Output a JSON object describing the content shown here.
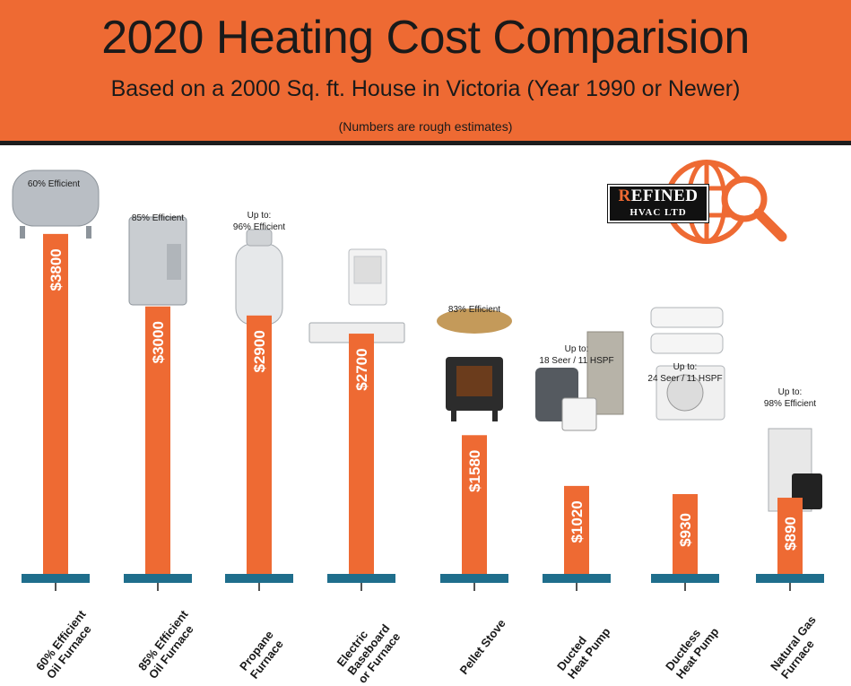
{
  "header": {
    "title": "2020 Heating Cost Comparision",
    "subtitle": "Based on a 2000 Sq. ft. House in Victoria (Year 1990 or Newer)",
    "note": "(Numbers are rough estimates)"
  },
  "logo": {
    "line1_first": "R",
    "line1_rest": "EFINED",
    "line2": "HVAC LTD"
  },
  "colors": {
    "accent": "#ee6a33",
    "baseline": "#1f6e8c",
    "text": "#1a1a1a"
  },
  "chart_data": {
    "type": "bar",
    "title": "2020 Heating Cost Comparision",
    "ylim": [
      0,
      4600
    ],
    "categories": [
      [
        "60% Efficient",
        "Oil Furnace"
      ],
      [
        "85% Efficient",
        "Oil Furnace"
      ],
      [
        "Propane",
        "Furnace"
      ],
      [
        "Electric",
        "Baseboard",
        "or Furnace"
      ],
      [
        "Pellet Stove"
      ],
      [
        "Ducted",
        "Heat Pump"
      ],
      [
        "Ductless",
        "Heat Pump"
      ],
      [
        "Natural Gas",
        "Furnace"
      ]
    ],
    "values": [
      3800,
      3000,
      2900,
      2700,
      1580,
      1020,
      930,
      890
    ],
    "value_labels": [
      "$3800",
      "$3000",
      "$2900",
      "$2700",
      "$1580",
      "$1020",
      "$930",
      "$890"
    ],
    "efficiency_labels": [
      [
        "60% Efficient"
      ],
      [
        "85% Efficient"
      ],
      [
        "Up to:",
        "96% Efficient"
      ],
      [],
      [
        "83% Efficient"
      ],
      [
        "Up to:",
        "18 Seer / 11 HSPF"
      ],
      [
        "Up to:",
        "24 Seer / 11 HSPF"
      ],
      [
        "Up to:",
        "98% Efficient"
      ]
    ],
    "product_icons": [
      "oil-tank-icon",
      "steel-oil-tank-icon",
      "propane-tank-icon",
      "baseboard-heater-icon",
      "pellet-stove-icon",
      "ducted-heat-pump-icon",
      "ductless-heat-pump-icon",
      "gas-furnace-icon"
    ]
  }
}
